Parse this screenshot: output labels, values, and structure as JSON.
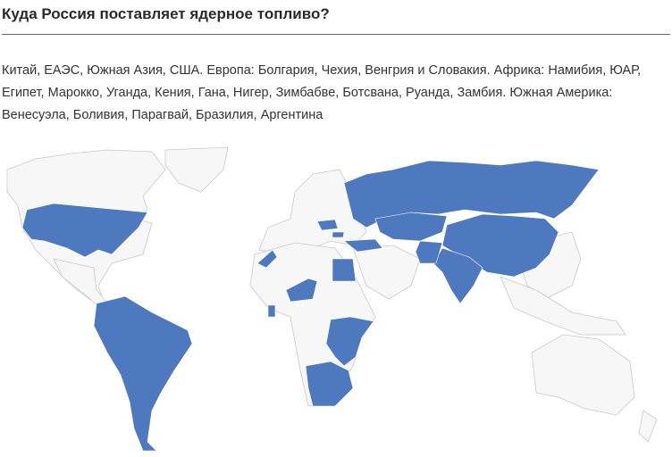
{
  "title": "Куда Россия поставляет ядерное топливо?",
  "description": "Китай, ЕАЭС, Южная Азия, США. Европа: Болгария, Чехия, Венгрия и Словакия. Африка: Намибия, ЮАР, Египет, Марокко, Уганда, Кения, Гана, Нигер, Зимбабве, Ботсвана, Руанда, Замбия. Южная Америка: Венесуэла, Боливия, Парагвай, Бразилия, Аргентина",
  "map": {
    "highlight_color": "#4e79bf",
    "base_color": "#f7f7f7",
    "highlighted_countries": [
      "Russia",
      "Kazakhstan",
      "Belarus",
      "Armenia",
      "Kyrgyzstan",
      "China",
      "India",
      "Pakistan",
      "Bangladesh",
      "USA",
      "Bulgaria",
      "Czechia",
      "Hungary",
      "Slovakia",
      "Turkey",
      "Namibia",
      "South Africa",
      "Egypt",
      "Morocco",
      "Uganda",
      "Kenya",
      "Ghana",
      "Niger",
      "Zimbabwe",
      "Botswana",
      "Rwanda",
      "Zambia",
      "Tanzania",
      "Venezuela",
      "Bolivia",
      "Paraguay",
      "Brazil",
      "Argentina",
      "Colombia",
      "Peru",
      "Chile",
      "Uzbekistan",
      "Mongolia",
      "Iran"
    ]
  }
}
